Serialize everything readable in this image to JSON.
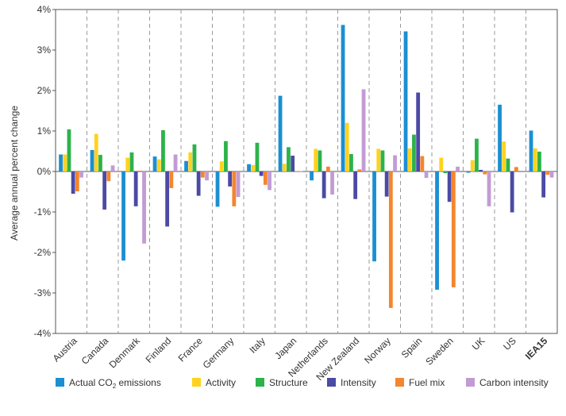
{
  "chart_data": {
    "type": "bar",
    "ylabel": "Average annual percent change",
    "ylim": [
      -4,
      4
    ],
    "yticks": [
      -4,
      -3,
      -2,
      -1,
      0,
      1,
      2,
      3,
      4
    ],
    "ytick_labels": [
      "-4%",
      "-3%",
      "-2%",
      "-1%",
      "0%",
      "1%",
      "2%",
      "3%",
      "4%"
    ],
    "grid": "vertical dashed separators between country groups",
    "legend_position": "bottom",
    "categories": [
      "Austria",
      "Canada",
      "Denmark",
      "Finland",
      "France",
      "Germany",
      "Italy",
      "Japan",
      "Netherlands",
      "New Zealand",
      "Norway",
      "Spain",
      "Sweden",
      "UK",
      "US",
      "IEA15"
    ],
    "series": [
      {
        "name": "Actual CO₂ emissions",
        "color": "#1b8fd2",
        "values": [
          0.42,
          0.53,
          -2.2,
          0.37,
          0.26,
          -0.87,
          0.18,
          1.87,
          -0.22,
          3.62,
          -2.22,
          3.46,
          -2.92,
          -0.03,
          1.65,
          1.01
        ]
      },
      {
        "name": "Activity",
        "color": "#ffd21f",
        "values": [
          0.42,
          0.93,
          0.34,
          0.3,
          0.47,
          0.25,
          0.16,
          0.19,
          0.56,
          1.2,
          0.56,
          0.57,
          0.34,
          0.28,
          0.74,
          0.57
        ]
      },
      {
        "name": "Structure",
        "color": "#2cb34a",
        "values": [
          1.04,
          0.41,
          0.47,
          1.02,
          0.67,
          0.75,
          0.71,
          0.6,
          0.52,
          0.43,
          0.52,
          0.91,
          -0.04,
          0.81,
          0.32,
          0.49
        ]
      },
      {
        "name": "Intensity",
        "color": "#4b4aa5",
        "values": [
          -0.55,
          -0.94,
          -0.86,
          -1.36,
          -0.6,
          -0.37,
          -0.11,
          0.39,
          -0.66,
          -0.68,
          -0.62,
          1.95,
          -0.75,
          0.04,
          -1.01,
          -0.64
        ]
      },
      {
        "name": "Fuel mix",
        "color": "#f3862e",
        "values": [
          -0.49,
          -0.24,
          0.02,
          -0.41,
          -0.15,
          -0.86,
          -0.33,
          0.01,
          0.12,
          0.05,
          -3.37,
          0.38,
          -2.86,
          -0.07,
          0.11,
          -0.08
        ]
      },
      {
        "name": "Carbon intensity",
        "color": "#c39bd3",
        "values": [
          -0.15,
          0.15,
          -1.78,
          0.42,
          -0.22,
          -0.63,
          -0.46,
          0.01,
          -0.57,
          2.03,
          0.4,
          -0.16,
          0.12,
          -0.86,
          -0.02,
          -0.15
        ]
      }
    ]
  },
  "legend": {
    "items": [
      {
        "text": "Actual CO",
        "sub": "2",
        "tail": " emissions"
      },
      {
        "text": "Activity"
      },
      {
        "text": "Structure"
      },
      {
        "text": "Intensity"
      },
      {
        "text": "Fuel mix"
      },
      {
        "text": "Carbon intensity"
      }
    ]
  }
}
